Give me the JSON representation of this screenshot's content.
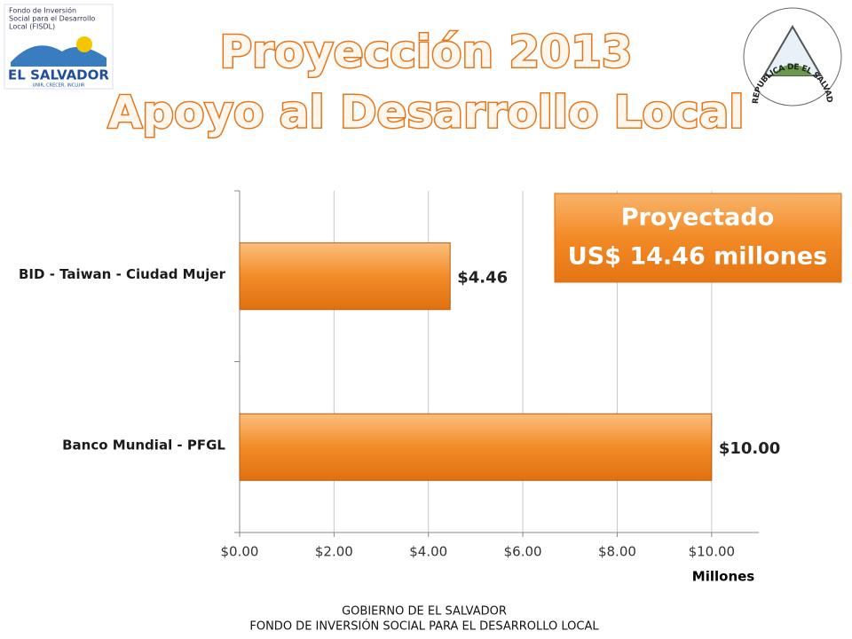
{
  "header": {
    "title_lines": [
      "Proyección 2013",
      "Apoyo al Desarrollo Local"
    ],
    "logo": {
      "lines": [
        "Fondo de Inversión",
        "Social para el Desarrollo",
        "Local (FISDL)"
      ],
      "name": "EL SALVADOR",
      "motto": "UNIR, CRECER, INCLUIR"
    },
    "seal_text": "REPUBLICA DE EL SALVADOR EN LA AMERICA CENTRAL"
  },
  "chart_data": {
    "type": "bar",
    "orientation": "horizontal",
    "categories": [
      "BID - Taiwan - Ciudad Mujer",
      "Banco Mundial - PFGL"
    ],
    "values": [
      4.46,
      10.0
    ],
    "value_labels": [
      "$4.46",
      "$10.00"
    ],
    "color": "#f28c28",
    "xlim": [
      0,
      11
    ],
    "xticks": [
      {
        "value": 0,
        "label": "$0.00"
      },
      {
        "value": 2,
        "label": "$2.00"
      },
      {
        "value": 4,
        "label": "$4.00"
      },
      {
        "value": 6,
        "label": "$6.00"
      },
      {
        "value": 8,
        "label": "$8.00"
      },
      {
        "value": 10,
        "label": "$10.00"
      }
    ],
    "x_label": "Millones",
    "grid": true,
    "annotation": [
      "Proyectado",
      "US$ 14.46 millones"
    ]
  },
  "footer": [
    "GOBIERNO DE EL SALVADOR",
    "FONDO DE INVERSIÓN SOCIAL PARA EL DESARROLLO LOCAL"
  ]
}
